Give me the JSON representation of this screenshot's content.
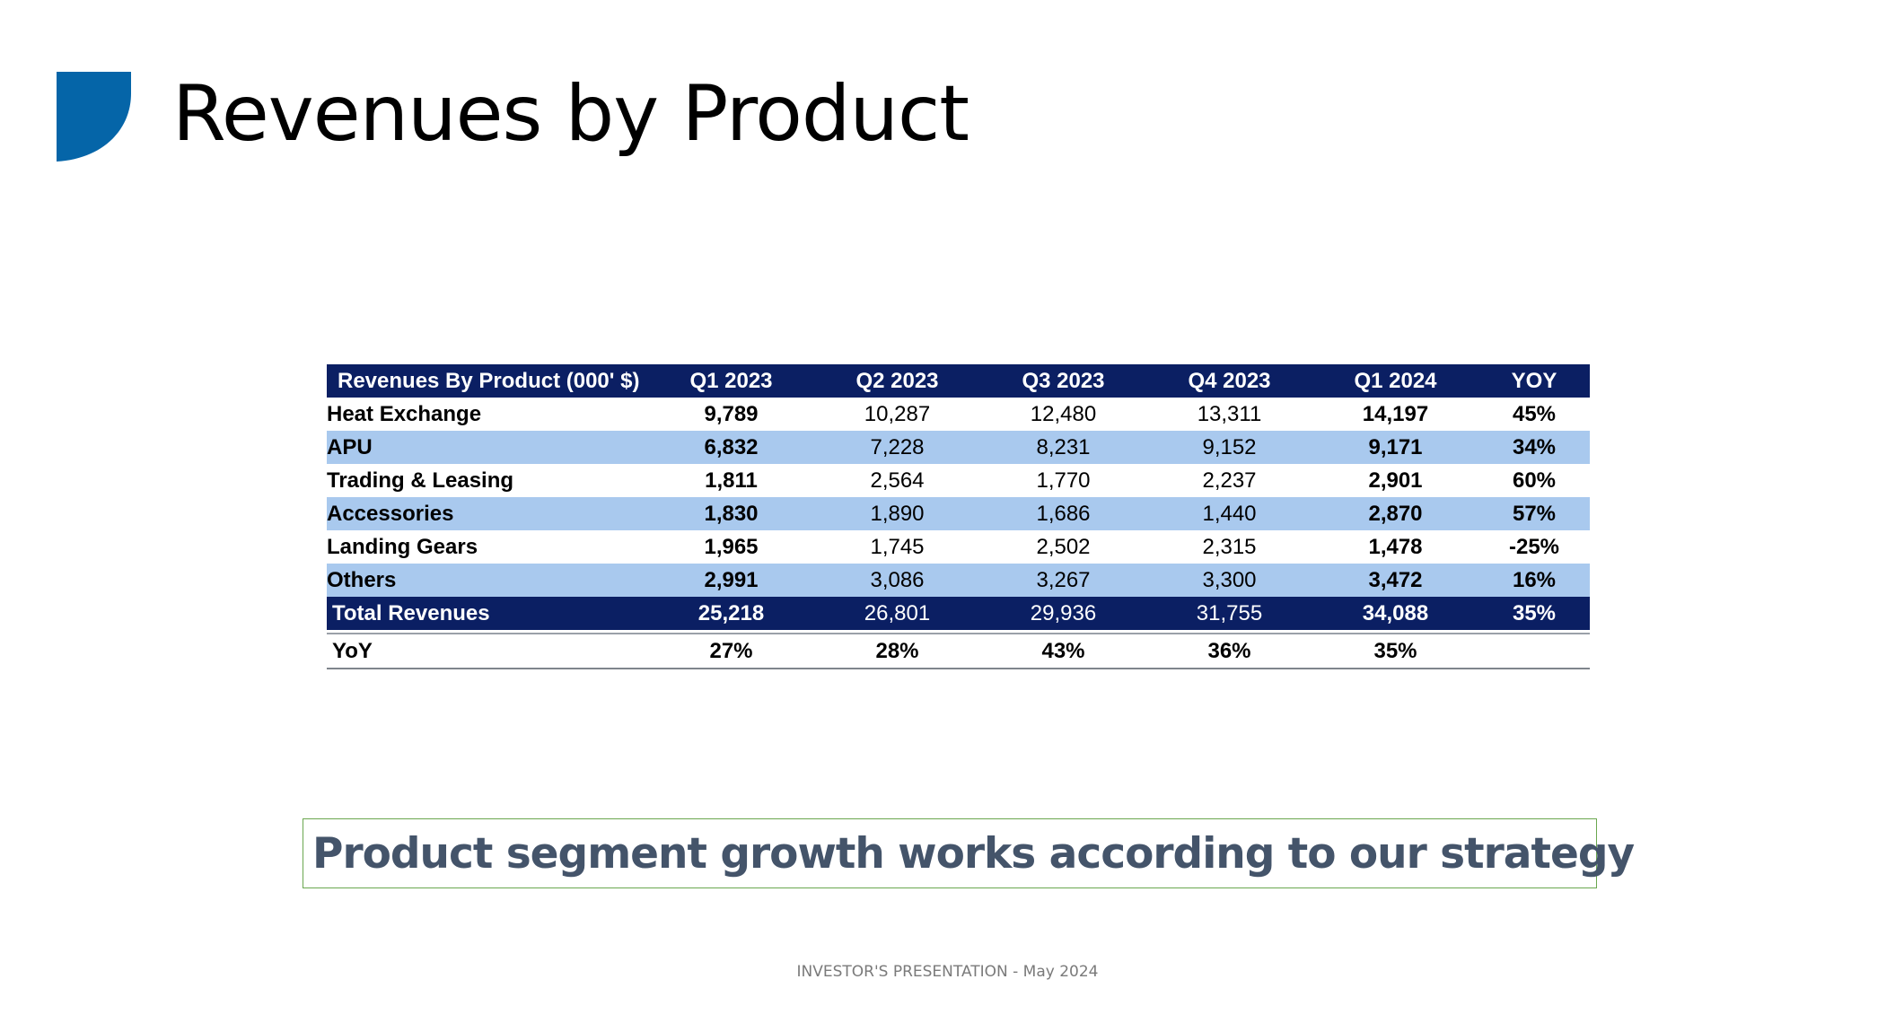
{
  "slide": {
    "title": "Revenues by Product",
    "accent_color": "#0565a8"
  },
  "table": {
    "header": [
      "Revenues By Product (000' $)",
      "Q1 2023",
      "Q2 2023",
      "Q3 2023",
      "Q4 2023",
      "Q1 2024",
      "YOY"
    ],
    "rows": [
      {
        "label": "Heat Exchange",
        "values": [
          "9,789",
          "10,287",
          "12,480",
          "13,311",
          "14,197",
          "45%"
        ]
      },
      {
        "label": "APU",
        "values": [
          "6,832",
          "7,228",
          "8,231",
          "9,152",
          "9,171",
          "34%"
        ]
      },
      {
        "label": "Trading & Leasing",
        "values": [
          "1,811",
          "2,564",
          "1,770",
          "2,237",
          "2,901",
          "60%"
        ]
      },
      {
        "label": "Accessories",
        "values": [
          "1,830",
          "1,890",
          "1,686",
          "1,440",
          "2,870",
          "57%"
        ]
      },
      {
        "label": "Landing Gears",
        "values": [
          "1,965",
          "1,745",
          "2,502",
          "2,315",
          "1,478",
          "-25%"
        ]
      },
      {
        "label": "Others",
        "values": [
          "2,991",
          "3,086",
          "3,267",
          "3,300",
          "3,472",
          "16%"
        ]
      }
    ],
    "total": {
      "label": "Total Revenues",
      "values": [
        "25,218",
        "26,801",
        "29,936",
        "31,755",
        "34,088",
        "35%"
      ]
    },
    "yoy": {
      "label": "YoY",
      "values": [
        "27%",
        "28%",
        "43%",
        "36%",
        "35%",
        ""
      ]
    }
  },
  "callout": {
    "text": "Product segment growth works according to our strategy"
  },
  "footer": {
    "text": "INVESTOR'S PRESENTATION - May 2024"
  }
}
